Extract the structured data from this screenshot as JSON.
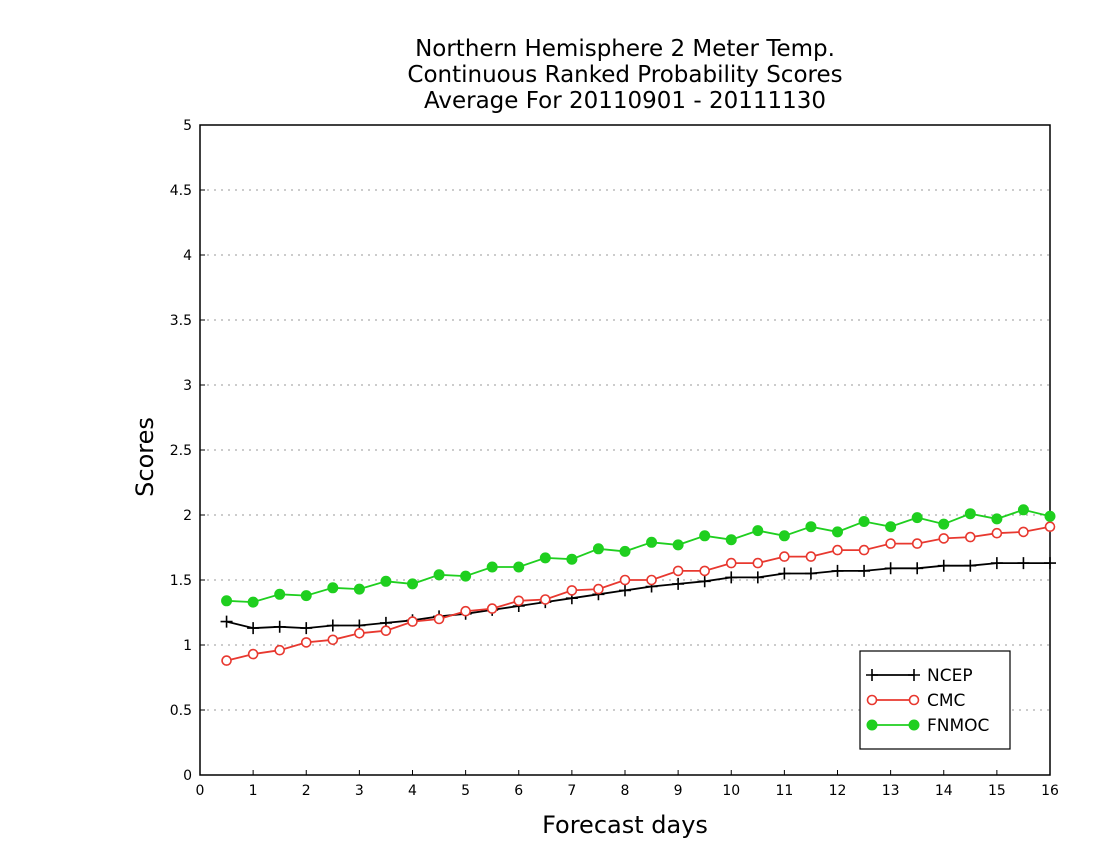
{
  "chart_data": {
    "type": "line",
    "title": [
      "Northern Hemisphere 2 Meter Temp.",
      "Continuous Ranked Probability Scores",
      "Average For 20110901 - 20111130"
    ],
    "xlabel": "Forecast days",
    "ylabel": "Scores",
    "xlim": [
      0,
      16
    ],
    "ylim": [
      0,
      5
    ],
    "xticks": [
      "0",
      "1",
      "2",
      "3",
      "4",
      "5",
      "6",
      "7",
      "8",
      "9",
      "10",
      "11",
      "12",
      "13",
      "14",
      "15",
      "16"
    ],
    "yticks": [
      "0",
      "0.5",
      "1",
      "1.5",
      "2",
      "2.5",
      "3",
      "3.5",
      "4",
      "4.5",
      "5"
    ],
    "grid": true,
    "legend_position": "bottom-right",
    "x": [
      0.5,
      1,
      1.5,
      2,
      2.5,
      3,
      3.5,
      4,
      4.5,
      5,
      5.5,
      6,
      6.5,
      7,
      7.5,
      8,
      8.5,
      9,
      9.5,
      10,
      10.5,
      11,
      11.5,
      12,
      12.5,
      13,
      13.5,
      14,
      14.5,
      15,
      15.5,
      16
    ],
    "series": [
      {
        "name": "NCEP",
        "color": "#000000",
        "marker": "plus",
        "values": [
          1.18,
          1.13,
          1.14,
          1.13,
          1.15,
          1.15,
          1.17,
          1.19,
          1.22,
          1.24,
          1.27,
          1.3,
          1.33,
          1.36,
          1.39,
          1.42,
          1.45,
          1.47,
          1.49,
          1.52,
          1.52,
          1.55,
          1.55,
          1.57,
          1.57,
          1.59,
          1.59,
          1.61,
          1.61,
          1.63,
          1.63,
          1.63
        ]
      },
      {
        "name": "CMC",
        "color": "#e8382f",
        "marker": "open-circle",
        "values": [
          0.88,
          0.93,
          0.96,
          1.02,
          1.04,
          1.09,
          1.11,
          1.18,
          1.2,
          1.26,
          1.28,
          1.34,
          1.35,
          1.42,
          1.43,
          1.5,
          1.5,
          1.57,
          1.57,
          1.63,
          1.63,
          1.68,
          1.68,
          1.73,
          1.73,
          1.78,
          1.78,
          1.82,
          1.83,
          1.86,
          1.87,
          1.91
        ]
      },
      {
        "name": "FNMOC",
        "color": "#1fcf1f",
        "marker": "filled-circle",
        "values": [
          1.34,
          1.33,
          1.39,
          1.38,
          1.44,
          1.43,
          1.49,
          1.47,
          1.54,
          1.53,
          1.6,
          1.6,
          1.67,
          1.66,
          1.74,
          1.72,
          1.79,
          1.77,
          1.84,
          1.81,
          1.88,
          1.84,
          1.91,
          1.87,
          1.95,
          1.91,
          1.98,
          1.93,
          2.01,
          1.97,
          2.04,
          1.99
        ]
      }
    ]
  }
}
